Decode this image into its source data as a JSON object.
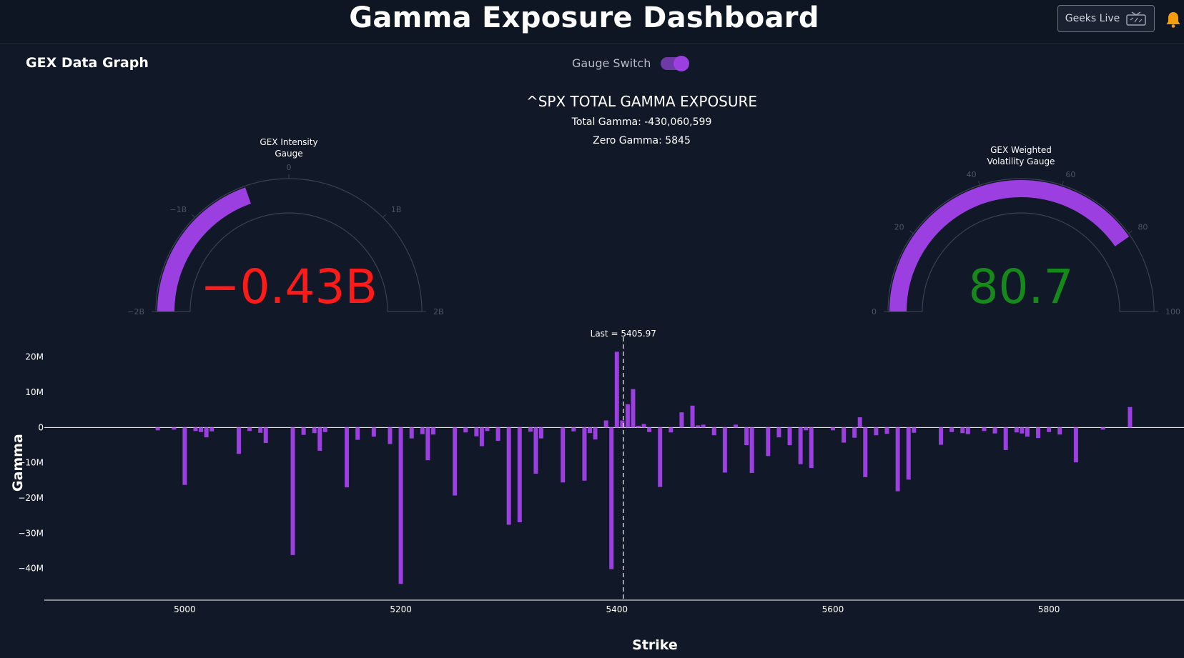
{
  "header": {
    "title": "Gamma Exposure Dashboard",
    "geeks_live_label": "Geeks Live"
  },
  "panel": {
    "title": "GEX Data Graph",
    "gauge_switch_label": "Gauge Switch",
    "gauge_switch_on": true
  },
  "summary": {
    "heading": "^SPX TOTAL GAMMA EXPOSURE",
    "total_gamma": "Total Gamma: -430,060,599",
    "zero_gamma": "Zero Gamma: 5845"
  },
  "gauges": [
    {
      "title_line1": "GEX Intensity",
      "title_line2": "Gauge",
      "value": -0.43,
      "display": "−0.43B",
      "range": [
        -2,
        2
      ],
      "ticks": [
        "−2B",
        "−1B",
        "0",
        "1B",
        "2B"
      ],
      "value_color": "#ff1a1a",
      "bar_color": "#9b3fe0"
    },
    {
      "title_line1": "GEX Weighted",
      "title_line2": "Volatility Gauge",
      "value": 80.7,
      "display": "80.7",
      "range": [
        0,
        100
      ],
      "ticks": [
        "0",
        "20",
        "40",
        "60",
        "80",
        "100"
      ],
      "value_color": "#15891a",
      "bar_color": "#9b3fe0"
    }
  ],
  "colors": {
    "background": "#111827",
    "bar": "#9b3fe0",
    "accent": "#9b3fe0",
    "bell": "#f59e0b"
  },
  "chart_data": {
    "type": "bar",
    "xlabel": "Strike",
    "ylabel": "Gamma",
    "xlim": [
      4870,
      5925
    ],
    "ylim": [
      -49,
      24
    ],
    "x_ticks": [
      5000,
      5200,
      5400,
      5600,
      5800
    ],
    "x_tick_labels": [
      "5000",
      "5200",
      "5400",
      "5600",
      "5800"
    ],
    "y_ticks": [
      20,
      10,
      0,
      -10,
      -20,
      -30,
      -40
    ],
    "y_tick_labels": [
      "20M",
      "10M",
      "0",
      "−10M",
      "−20M",
      "−30M",
      "−40M"
    ],
    "units": "M",
    "last_price": 5405.97,
    "last_label": "Last = 5405.97",
    "grid": false,
    "series": [
      {
        "x": [
          4975,
          4990,
          5000,
          5010,
          5015,
          5020,
          5025,
          5050,
          5060,
          5070,
          5075,
          5100,
          5110,
          5120,
          5125,
          5130,
          5150,
          5160,
          5175,
          5190,
          5200,
          5210,
          5220,
          5225,
          5230,
          5250,
          5260,
          5270,
          5275,
          5280,
          5290,
          5300,
          5310,
          5320,
          5325,
          5330,
          5350,
          5360,
          5370,
          5375,
          5380,
          5390,
          5395,
          5400,
          5405,
          5410,
          5415,
          5420,
          5425,
          5430,
          5440,
          5450,
          5460,
          5470,
          5475,
          5480,
          5490,
          5500,
          5510,
          5520,
          5525,
          5540,
          5550,
          5560,
          5570,
          5575,
          5580,
          5600,
          5610,
          5620,
          5625,
          5630,
          5640,
          5650,
          5660,
          5670,
          5675,
          5700,
          5710,
          5720,
          5725,
          5740,
          5750,
          5760,
          5770,
          5775,
          5780,
          5790,
          5800,
          5810,
          5825,
          5850,
          5875
        ],
        "values": [
          -0.8,
          -0.6,
          -16.3,
          -1.0,
          -1.3,
          -2.8,
          -1.1,
          -7.5,
          -1.0,
          -1.5,
          -4.4,
          -36.2,
          -2.1,
          -1.6,
          -6.6,
          -1.3,
          -17.0,
          -3.5,
          -2.6,
          -4.7,
          -44.4,
          -3.1,
          -1.9,
          -9.3,
          -2.0,
          -19.3,
          -1.4,
          -2.5,
          -5.3,
          -1.0,
          -3.8,
          -27.6,
          -26.9,
          -1.2,
          -13.1,
          -3.1,
          -15.6,
          -1.1,
          -15.1,
          -1.6,
          -3.4,
          2.0,
          -40.2,
          21.5,
          2.0,
          6.6,
          10.9,
          0.5,
          1.0,
          -1.3,
          -16.9,
          -1.4,
          4.3,
          6.2,
          0.6,
          0.8,
          -2.2,
          -12.8,
          0.8,
          -5.0,
          -12.9,
          -8.1,
          -2.8,
          -5.0,
          -10.4,
          -0.8,
          -11.5,
          -0.8,
          -4.3,
          -2.9,
          2.9,
          -14.1,
          -2.2,
          -1.8,
          -18.1,
          -14.8,
          -1.5,
          -4.9,
          -1.3,
          -1.6,
          -1.9,
          -1.0,
          -1.7,
          -6.4,
          -1.4,
          -1.7,
          -2.6,
          -3.0,
          -1.3,
          -2.0,
          -9.9,
          -0.6,
          5.8
        ]
      }
    ]
  }
}
